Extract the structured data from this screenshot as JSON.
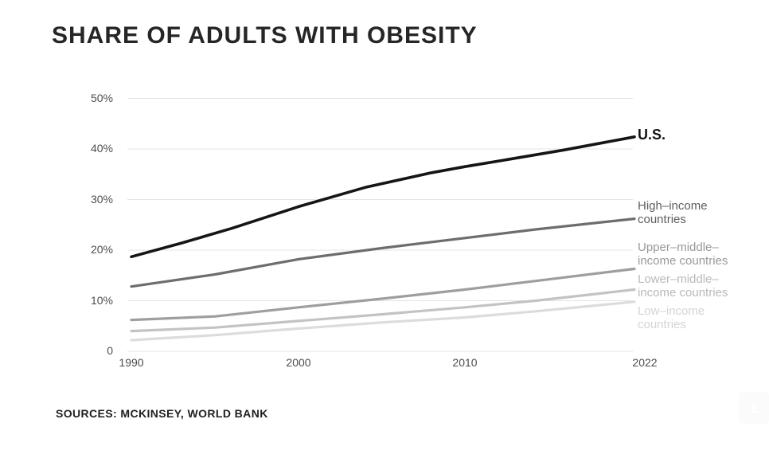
{
  "header": {
    "title": "SHARE OF ADULTS WITH OBESITY"
  },
  "footer": {
    "sources": "SOURCES: MCKINSEY, WORLD BANK"
  },
  "toolbar": {
    "download_icon": "download-icon"
  },
  "colors": {
    "background": "#ffffff",
    "gridline": "#e4e4e4",
    "axis_text": "#4d4d4d",
    "title_text": "#262626"
  },
  "chart_data": {
    "type": "line",
    "title": "SHARE OF ADULTS WITH OBESITY",
    "xlabel": "",
    "ylabel": "",
    "xlim": [
      1990,
      2022
    ],
    "ylim": [
      0,
      50
    ],
    "grid": "horizontal",
    "legend_position": "right-of-line-ends",
    "x_tick_years": [
      1990,
      2000,
      2010,
      2022
    ],
    "x_tick_labels": [
      "1990",
      "2000",
      "2010",
      "2022"
    ],
    "y_tick_values": [
      50,
      40,
      30,
      20,
      10,
      0
    ],
    "y_tick_labels": [
      "50%",
      "40%",
      "30%",
      "20%",
      "10%",
      "0"
    ],
    "series": [
      {
        "name": "U.S.",
        "label_lines": [
          "U.S."
        ],
        "color": "#151515",
        "label_color": "#141414",
        "x": [
          1990,
          1993,
          1996,
          2000,
          2004,
          2008,
          2010,
          2013,
          2017,
          2022
        ],
        "values": [
          18.7,
          21.4,
          24.3,
          28.6,
          32.4,
          35.3,
          36.5,
          37.9,
          39.8,
          42.4
        ]
      },
      {
        "name": "High–income countries",
        "label_lines": [
          "High–income",
          "countries"
        ],
        "color": "#6d6d6d",
        "label_color": "#5e5e5e",
        "x": [
          1990,
          1995,
          2000,
          2005,
          2010,
          2015,
          2022
        ],
        "values": [
          12.8,
          15.2,
          18.2,
          20.4,
          22.4,
          24.1,
          26.2
        ]
      },
      {
        "name": "Upper–middle–income countries",
        "label_lines": [
          "Upper–middle–",
          "income countries"
        ],
        "color": "#9e9e9e",
        "label_color": "#999999",
        "x": [
          1990,
          1995,
          2000,
          2005,
          2010,
          2015,
          2022
        ],
        "values": [
          6.2,
          6.9,
          8.7,
          10.4,
          12.2,
          13.9,
          16.3
        ]
      },
      {
        "name": "Lower–middle–income countries",
        "label_lines": [
          "Lower–middle–",
          "income countries"
        ],
        "color": "#c3c3c3",
        "label_color": "#b9b9b9",
        "x": [
          1990,
          1995,
          2000,
          2005,
          2010,
          2015,
          2022
        ],
        "values": [
          4.0,
          4.7,
          6.0,
          7.3,
          8.7,
          10.0,
          12.2
        ]
      },
      {
        "name": "Low–income countries",
        "label_lines": [
          "Low–income",
          "countries"
        ],
        "color": "#dcdcdc",
        "label_color": "#d4d4d4",
        "x": [
          1990,
          1995,
          2000,
          2005,
          2010,
          2015,
          2022
        ],
        "values": [
          2.2,
          3.2,
          4.5,
          5.7,
          6.7,
          7.9,
          9.8
        ]
      }
    ]
  }
}
